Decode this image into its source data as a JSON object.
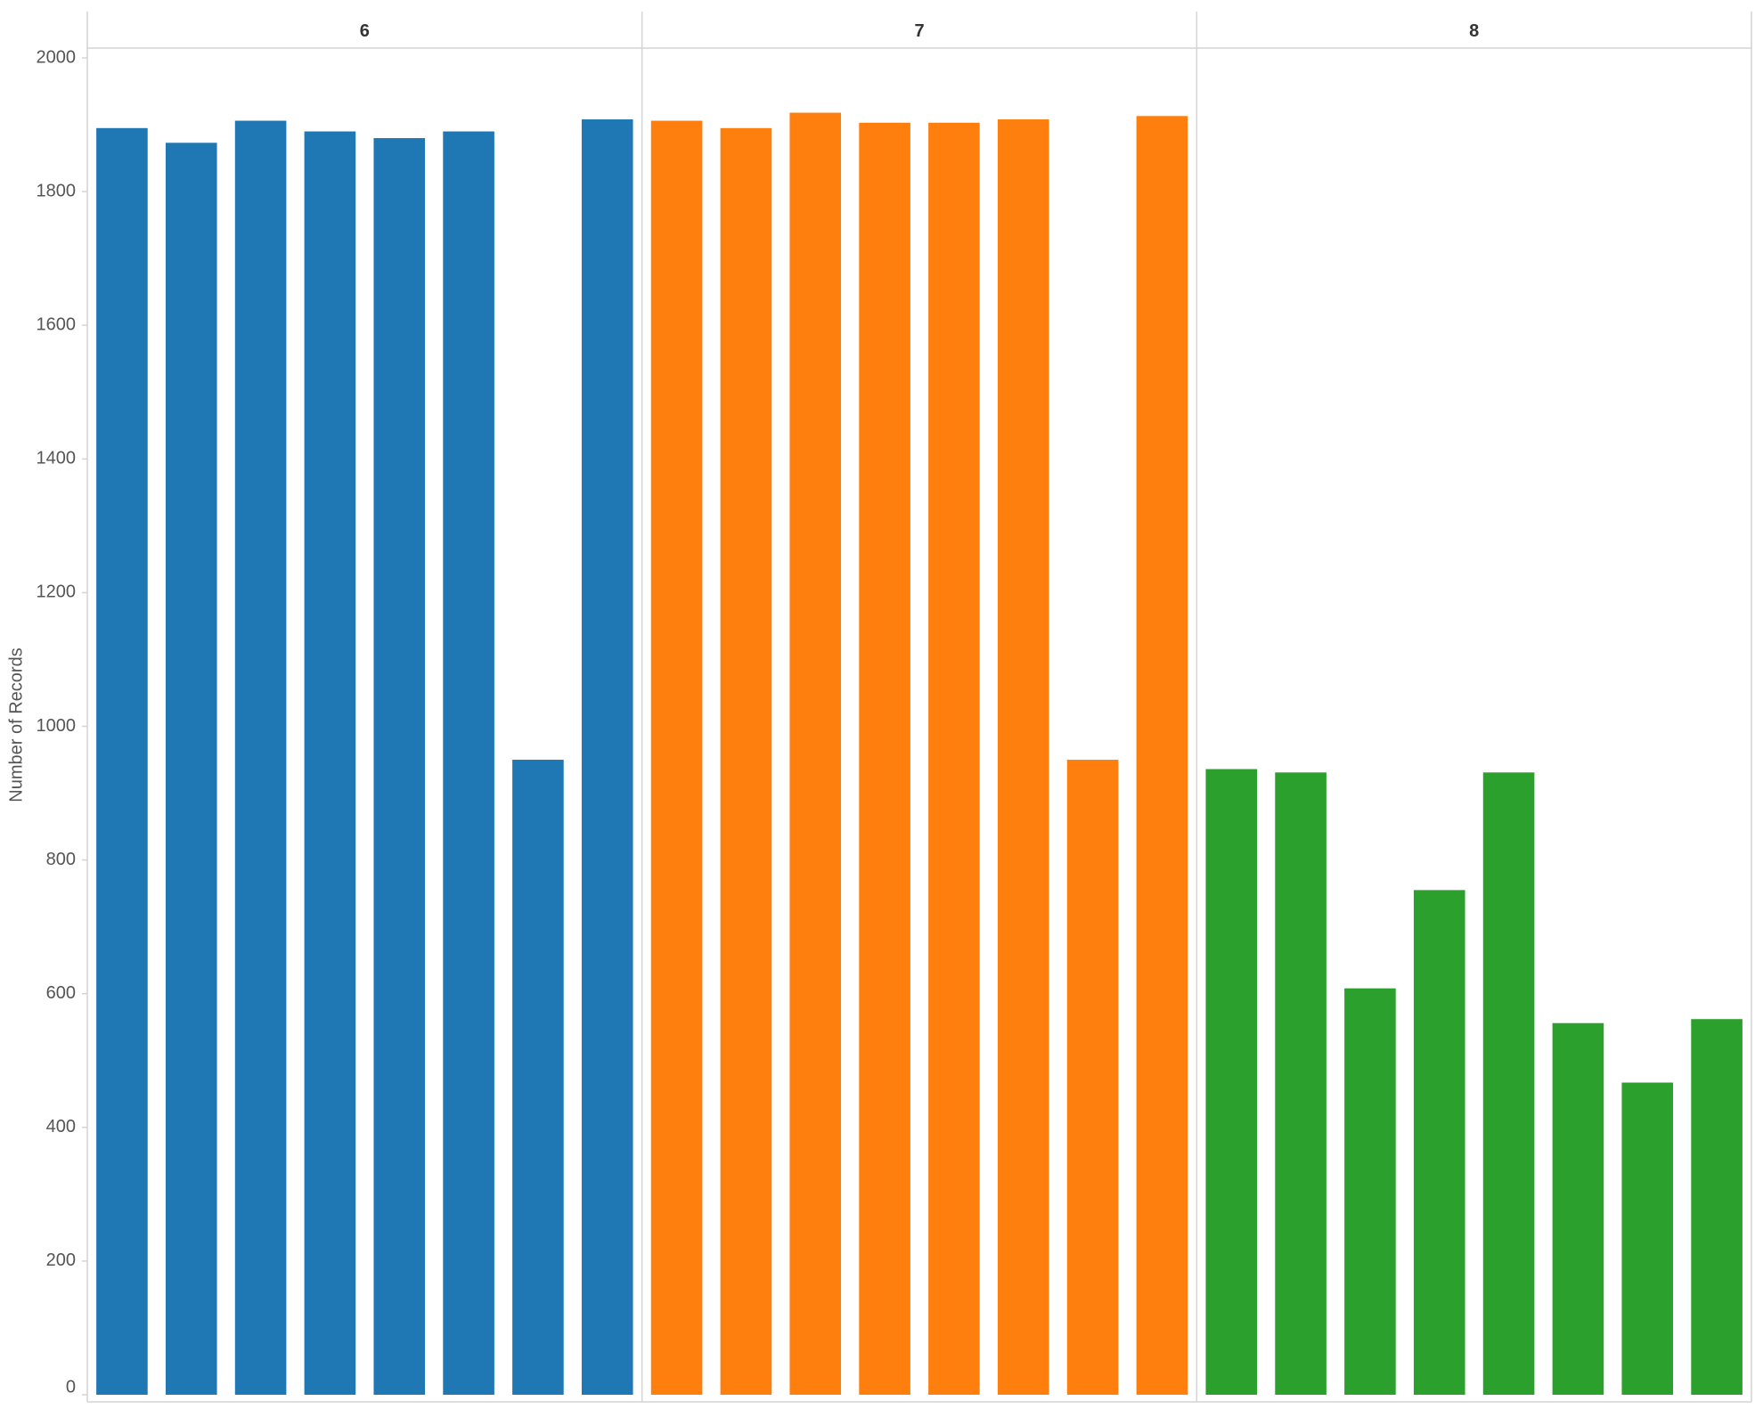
{
  "chart_data": {
    "type": "bar",
    "y_label": "Number of Records",
    "ylim": [
      0,
      2000
    ],
    "yticks": [
      0,
      200,
      400,
      600,
      800,
      1000,
      1200,
      1400,
      1600,
      1800,
      2000
    ],
    "panels": [
      {
        "title": "6",
        "color": "#1f77b4",
        "values": [
          1895,
          1873,
          1906,
          1890,
          1880,
          1890,
          950,
          1908
        ]
      },
      {
        "title": "7",
        "color": "#ff7f0e",
        "values": [
          1906,
          1895,
          1918,
          1903,
          1903,
          1908,
          950,
          1913
        ]
      },
      {
        "title": "8",
        "color": "#2ca02c",
        "values": [
          936,
          931,
          608,
          755,
          931,
          556,
          467,
          562
        ]
      }
    ]
  }
}
